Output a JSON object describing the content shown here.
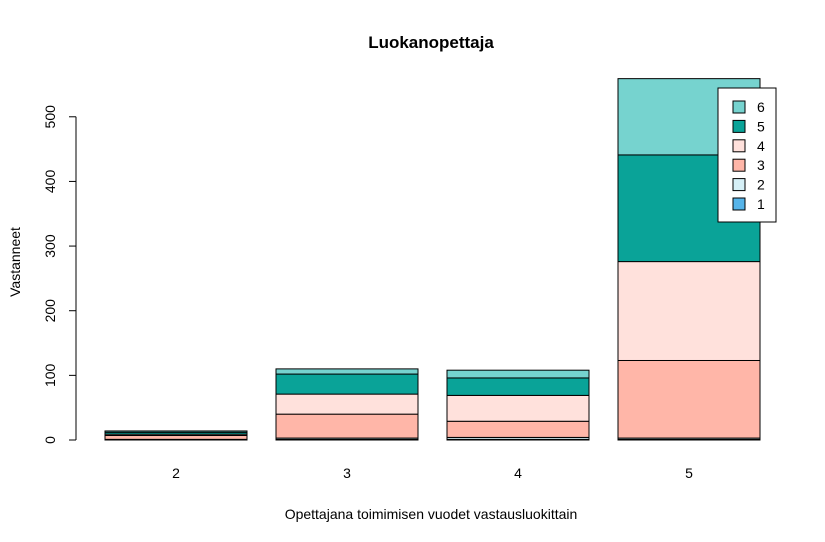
{
  "chart_data": {
    "type": "bar",
    "stacked": true,
    "title": "Luokanopettaja",
    "xlabel": "Opettajana toimimisen vuodet vastausluokittain",
    "ylabel": "Vastanneet",
    "categories": [
      "2",
      "3",
      "4",
      "5"
    ],
    "ylim": [
      0,
      560
    ],
    "yticks": [
      "0",
      "100",
      "200",
      "300",
      "400",
      "500"
    ],
    "series": [
      {
        "name": "1",
        "color": "#56B4E9",
        "values": [
          0,
          1,
          1,
          1
        ]
      },
      {
        "name": "2",
        "color": "#D6F0F7",
        "values": [
          1,
          2,
          3,
          2
        ]
      },
      {
        "name": "3",
        "color": "#FFB6A8",
        "values": [
          6,
          37,
          25,
          120
        ]
      },
      {
        "name": "4",
        "color": "#FFE1DC",
        "values": [
          2,
          31,
          40,
          153
        ]
      },
      {
        "name": "5",
        "color": "#0AA398",
        "values": [
          3,
          31,
          27,
          165
        ]
      },
      {
        "name": "6",
        "color": "#76D3CF",
        "values": [
          2,
          8,
          12,
          118
        ]
      }
    ],
    "legend_position": "top-right",
    "grid": false
  }
}
